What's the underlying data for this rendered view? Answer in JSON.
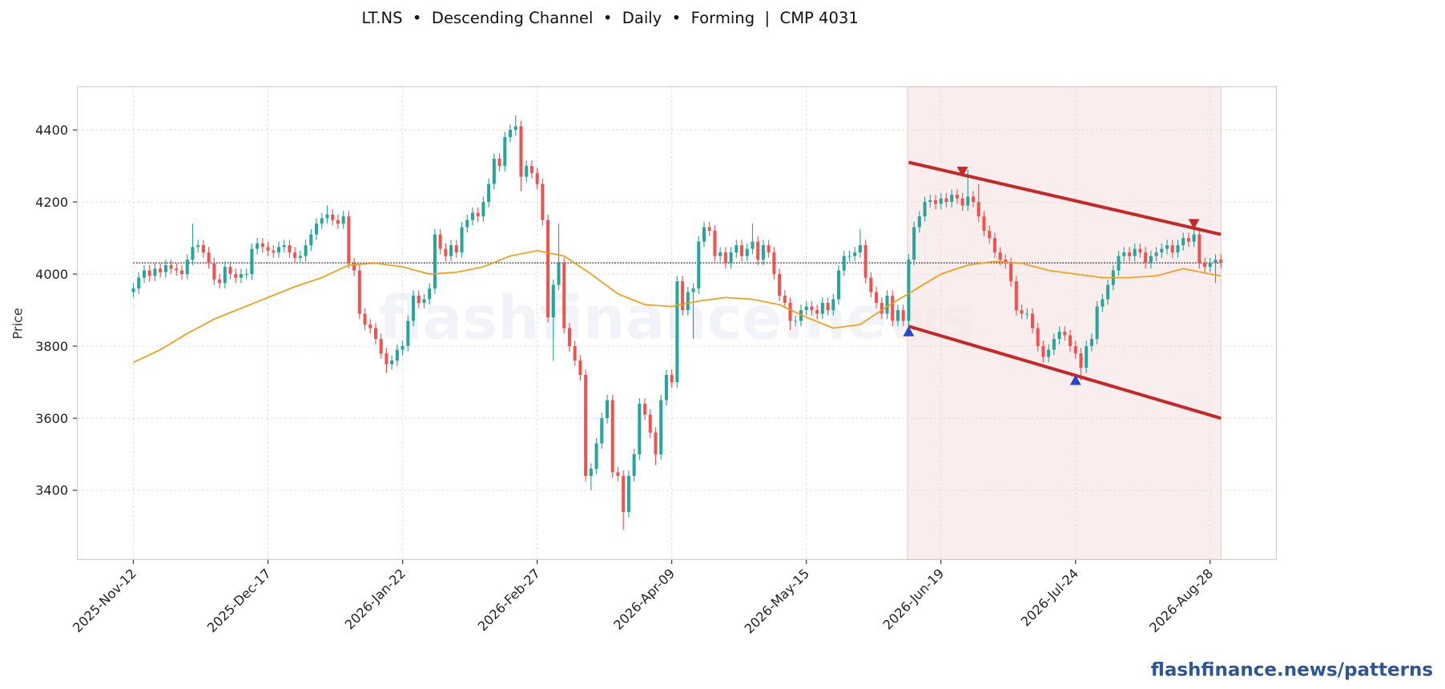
{
  "chart_data": {
    "type": "candlestick",
    "title": "LT.NS  •  Descending Channel  •  Daily  •  Forming  |  CMP 4031",
    "ylabel": "Price",
    "watermark": "flashfinance.news",
    "footer": "flashfinance.news/patterns",
    "xlim": [
      -10.4,
      212.3
    ],
    "ylim": [
      3208,
      4520
    ],
    "xticks": [
      {
        "value": 0,
        "label": "2025-Nov-12"
      },
      {
        "value": 25,
        "label": "2025-Dec-17"
      },
      {
        "value": 50,
        "label": "2026-Jan-22"
      },
      {
        "value": 75,
        "label": "2026-Feb-27"
      },
      {
        "value": 100,
        "label": "2026-Apr-09"
      },
      {
        "value": 125,
        "label": "2026-May-15"
      },
      {
        "value": 150,
        "label": "2026-Jun-19"
      },
      {
        "value": 175,
        "label": "2026-Jul-24"
      },
      {
        "value": 200,
        "label": "2026-Aug-28"
      }
    ],
    "yticks": [
      3400,
      3600,
      3800,
      4000,
      4200,
      4400
    ],
    "grid": true,
    "up_color": "#26a69a",
    "down_color": "#ef5350",
    "open": [
      3950,
      3960,
      3990,
      4010,
      3995,
      4015,
      4005,
      4025,
      4015,
      4010,
      4000,
      4040,
      4075,
      4080,
      4060,
      4030,
      3985,
      3975,
      4020,
      4000,
      3990,
      4000,
      4000,
      4070,
      4085,
      4075,
      4065,
      4060,
      4075,
      4080,
      4060,
      4045,
      4050,
      4080,
      4110,
      4140,
      4155,
      4165,
      4150,
      4140,
      4160,
      4030,
      4010,
      3890,
      3860,
      3850,
      3820,
      3780,
      3750,
      3760,
      3790,
      3800,
      3870,
      3940,
      3920,
      3930,
      3960,
      4110,
      4070,
      4050,
      4080,
      4060,
      4130,
      4150,
      4170,
      4160,
      4200,
      4250,
      4320,
      4300,
      4380,
      4400,
      4410,
      4270,
      4300,
      4280,
      4250,
      4150,
      3880,
      3970,
      4030,
      3850,
      3800,
      3760,
      3720,
      3440,
      3460,
      3530,
      3600,
      3650,
      3450,
      3440,
      3340,
      3440,
      3500,
      3640,
      3610,
      3560,
      3500,
      3650,
      3720,
      3700,
      3980,
      3900,
      3950,
      3960,
      4090,
      4130,
      4120,
      4050,
      4060,
      4030,
      4060,
      4080,
      4050,
      4070,
      4090,
      4040,
      4080,
      4060,
      4000,
      3940,
      3920,
      3870,
      3870,
      3900,
      3910,
      3900,
      3890,
      3920,
      3900,
      3930,
      4010,
      4050,
      4050,
      4060,
      4080,
      3990,
      3950,
      3920,
      3890,
      3940,
      3870,
      3900,
      3870,
      4040,
      4130,
      4160,
      4200,
      4205,
      4195,
      4210,
      4200,
      4220,
      4210,
      4190,
      4215,
      4200,
      4160,
      4120,
      4100,
      4060,
      4040,
      4030,
      3980,
      3900,
      3890,
      3890,
      3850,
      3800,
      3770,
      3790,
      3820,
      3840,
      3830,
      3800,
      3780,
      3740,
      3800,
      3820,
      3910,
      3930,
      3970,
      4010,
      4050,
      4060,
      4050,
      4070,
      4060,
      4030,
      4050,
      4060,
      4070,
      4080,
      4060,
      4080,
      4100,
      4090,
      4110,
      4030,
      4020,
      4030,
      4040
    ],
    "high": [
      3975,
      4005,
      4025,
      4025,
      4030,
      4030,
      4040,
      4040,
      4030,
      4025,
      4055,
      4140,
      4095,
      4095,
      4075,
      4045,
      4000,
      4035,
      4035,
      4015,
      4015,
      4015,
      4085,
      4100,
      4100,
      4090,
      4080,
      4090,
      4095,
      4095,
      4075,
      4065,
      4095,
      4125,
      4155,
      4170,
      4190,
      4180,
      4165,
      4175,
      4175,
      4045,
      4025,
      3905,
      3875,
      3865,
      3835,
      3795,
      3775,
      3805,
      3815,
      3885,
      3955,
      3955,
      3945,
      3975,
      4125,
      4125,
      4085,
      4095,
      4095,
      4145,
      4165,
      4185,
      4185,
      4215,
      4265,
      4335,
      4335,
      4395,
      4415,
      4440,
      4425,
      4315,
      4315,
      4295,
      4265,
      4165,
      3985,
      4140,
      4045,
      3865,
      3815,
      3775,
      3735,
      3475,
      3545,
      3615,
      3665,
      3665,
      3465,
      3455,
      3455,
      3515,
      3655,
      3655,
      3625,
      3575,
      3665,
      3735,
      3735,
      3995,
      3995,
      3965,
      3975,
      4105,
      4145,
      4145,
      4135,
      4075,
      4075,
      4075,
      4095,
      4095,
      4085,
      4140,
      4105,
      4095,
      4095,
      4075,
      4015,
      3955,
      3935,
      3885,
      3915,
      3925,
      3925,
      3915,
      3935,
      3935,
      3945,
      4025,
      4065,
      4065,
      4075,
      4125,
      4095,
      4005,
      3965,
      3935,
      3955,
      3955,
      3915,
      3915,
      4055,
      4145,
      4175,
      4215,
      4220,
      4220,
      4225,
      4225,
      4235,
      4235,
      4225,
      4290,
      4230,
      4250,
      4175,
      4135,
      4115,
      4075,
      4055,
      4045,
      3995,
      3915,
      3905,
      3905,
      3865,
      3815,
      3805,
      3835,
      3855,
      3855,
      3845,
      3815,
      3795,
      3815,
      3835,
      3925,
      3945,
      3985,
      4025,
      4065,
      4075,
      4075,
      4085,
      4085,
      4075,
      4065,
      4075,
      4085,
      4095,
      4095,
      4095,
      4115,
      4115,
      4125,
      4125,
      4045,
      4045,
      4055,
      4055
    ],
    "low": [
      3935,
      3945,
      3975,
      3980,
      3980,
      3990,
      3990,
      4000,
      3995,
      3985,
      3985,
      4025,
      4060,
      4045,
      4015,
      3970,
      3960,
      3960,
      3985,
      3975,
      3975,
      3985,
      3985,
      4055,
      4060,
      4050,
      4045,
      4045,
      4060,
      4045,
      4030,
      4030,
      4035,
      4065,
      4095,
      4125,
      4140,
      4135,
      4125,
      4125,
      4015,
      3995,
      3875,
      3845,
      3835,
      3805,
      3765,
      3725,
      3735,
      3745,
      3775,
      3785,
      3855,
      3905,
      3905,
      3915,
      3945,
      4055,
      4035,
      4035,
      4045,
      4045,
      4115,
      4135,
      4145,
      4145,
      4185,
      4235,
      4285,
      4285,
      4365,
      4385,
      4230,
      4255,
      4265,
      4235,
      4135,
      3865,
      3760,
      3955,
      3835,
      3785,
      3745,
      3705,
      3425,
      3400,
      3445,
      3515,
      3585,
      3435,
      3425,
      3290,
      3325,
      3425,
      3485,
      3595,
      3545,
      3470,
      3485,
      3635,
      3685,
      3685,
      3885,
      3885,
      3820,
      3945,
      4075,
      4105,
      4035,
      4035,
      4015,
      4015,
      4045,
      4035,
      4035,
      4055,
      4025,
      4025,
      4045,
      3985,
      3925,
      3905,
      3845,
      3855,
      3855,
      3885,
      3885,
      3875,
      3875,
      3885,
      3885,
      3915,
      3995,
      4035,
      4035,
      4045,
      3975,
      3935,
      3905,
      3875,
      3875,
      3855,
      3855,
      3855,
      3855,
      4025,
      4115,
      4145,
      4185,
      4180,
      4180,
      4185,
      4185,
      4195,
      4175,
      4175,
      4185,
      4145,
      4105,
      4085,
      4045,
      4025,
      4015,
      3965,
      3885,
      3875,
      3875,
      3835,
      3785,
      3755,
      3755,
      3775,
      3805,
      3815,
      3785,
      3765,
      3705,
      3725,
      3785,
      3805,
      3895,
      3915,
      3955,
      3995,
      4035,
      4035,
      4035,
      4045,
      4015,
      4015,
      4035,
      4045,
      4055,
      4045,
      4045,
      4065,
      4075,
      4075,
      4015,
      4005,
      4005,
      3975,
      4016
    ],
    "close": [
      3960,
      3990,
      4010,
      3995,
      4015,
      4005,
      4025,
      4015,
      4010,
      4000,
      4040,
      4075,
      4080,
      4060,
      4030,
      3985,
      3975,
      4020,
      4000,
      3990,
      4000,
      4000,
      4070,
      4085,
      4075,
      4065,
      4060,
      4075,
      4080,
      4060,
      4045,
      4050,
      4080,
      4110,
      4140,
      4155,
      4165,
      4150,
      4140,
      4160,
      4030,
      4010,
      3890,
      3860,
      3850,
      3820,
      3780,
      3750,
      3760,
      3790,
      3800,
      3870,
      3940,
      3920,
      3930,
      3960,
      4110,
      4070,
      4050,
      4080,
      4060,
      4130,
      4150,
      4170,
      4160,
      4200,
      4250,
      4320,
      4300,
      4380,
      4400,
      4410,
      4270,
      4300,
      4280,
      4250,
      4150,
      3880,
      3970,
      4030,
      3850,
      3800,
      3760,
      3720,
      3440,
      3460,
      3530,
      3600,
      3650,
      3450,
      3440,
      3340,
      3440,
      3500,
      3640,
      3610,
      3560,
      3500,
      3650,
      3720,
      3700,
      3980,
      3900,
      3950,
      3960,
      4090,
      4130,
      4120,
      4050,
      4060,
      4030,
      4060,
      4080,
      4050,
      4070,
      4090,
      4040,
      4080,
      4060,
      4000,
      3940,
      3920,
      3870,
      3870,
      3900,
      3910,
      3900,
      3890,
      3920,
      3900,
      3930,
      4010,
      4050,
      4050,
      4060,
      4080,
      3990,
      3950,
      3920,
      3890,
      3940,
      3870,
      3900,
      3870,
      4040,
      4130,
      4160,
      4200,
      4205,
      4195,
      4210,
      4200,
      4220,
      4210,
      4190,
      4215,
      4200,
      4160,
      4120,
      4100,
      4060,
      4040,
      4030,
      3980,
      3900,
      3890,
      3890,
      3850,
      3800,
      3770,
      3790,
      3820,
      3840,
      3830,
      3800,
      3780,
      3740,
      3800,
      3820,
      3910,
      3930,
      3970,
      4010,
      4050,
      4060,
      4050,
      4070,
      4060,
      4030,
      4050,
      4060,
      4070,
      4080,
      4060,
      4080,
      4100,
      4090,
      4110,
      4030,
      4020,
      4030,
      4040,
      4031
    ],
    "moving_average": {
      "color": "#f39c12",
      "x": [
        0,
        5,
        10,
        15,
        20,
        25,
        30,
        35,
        40,
        45,
        50,
        55,
        60,
        65,
        70,
        75,
        80,
        85,
        90,
        95,
        100,
        105,
        110,
        115,
        120,
        125,
        130,
        135,
        140,
        145,
        150,
        155,
        160,
        165,
        170,
        175,
        180,
        185,
        190,
        195,
        200,
        202
      ],
      "values": [
        3755,
        3790,
        3835,
        3875,
        3905,
        3935,
        3965,
        3990,
        4025,
        4030,
        4020,
        4000,
        4005,
        4020,
        4050,
        4065,
        4050,
        4000,
        3945,
        3915,
        3910,
        3925,
        3935,
        3930,
        3915,
        3880,
        3850,
        3860,
        3910,
        3955,
        4000,
        4025,
        4035,
        4030,
        4010,
        4000,
        3990,
        3990,
        3995,
        4015,
        4000,
        3995
      ]
    },
    "channel_color": "#c62828",
    "channel_upper": {
      "x": [
        144,
        202
      ],
      "values": [
        4310,
        4110
      ]
    },
    "channel_lower": {
      "x": [
        144,
        202
      ],
      "values": [
        3855,
        3600
      ]
    },
    "pattern_region": {
      "x": [
        143.8,
        202
      ],
      "color": "#f8e6e6"
    },
    "peaks": {
      "color": "#c62828",
      "x": [
        154,
        197
      ],
      "values": [
        4285,
        4140
      ]
    },
    "troughs": {
      "color": "#2548c9",
      "x": [
        144,
        175
      ],
      "values": [
        3840,
        3705
      ]
    },
    "cmp_line": {
      "value": 4031,
      "x": [
        0,
        202
      ]
    }
  }
}
